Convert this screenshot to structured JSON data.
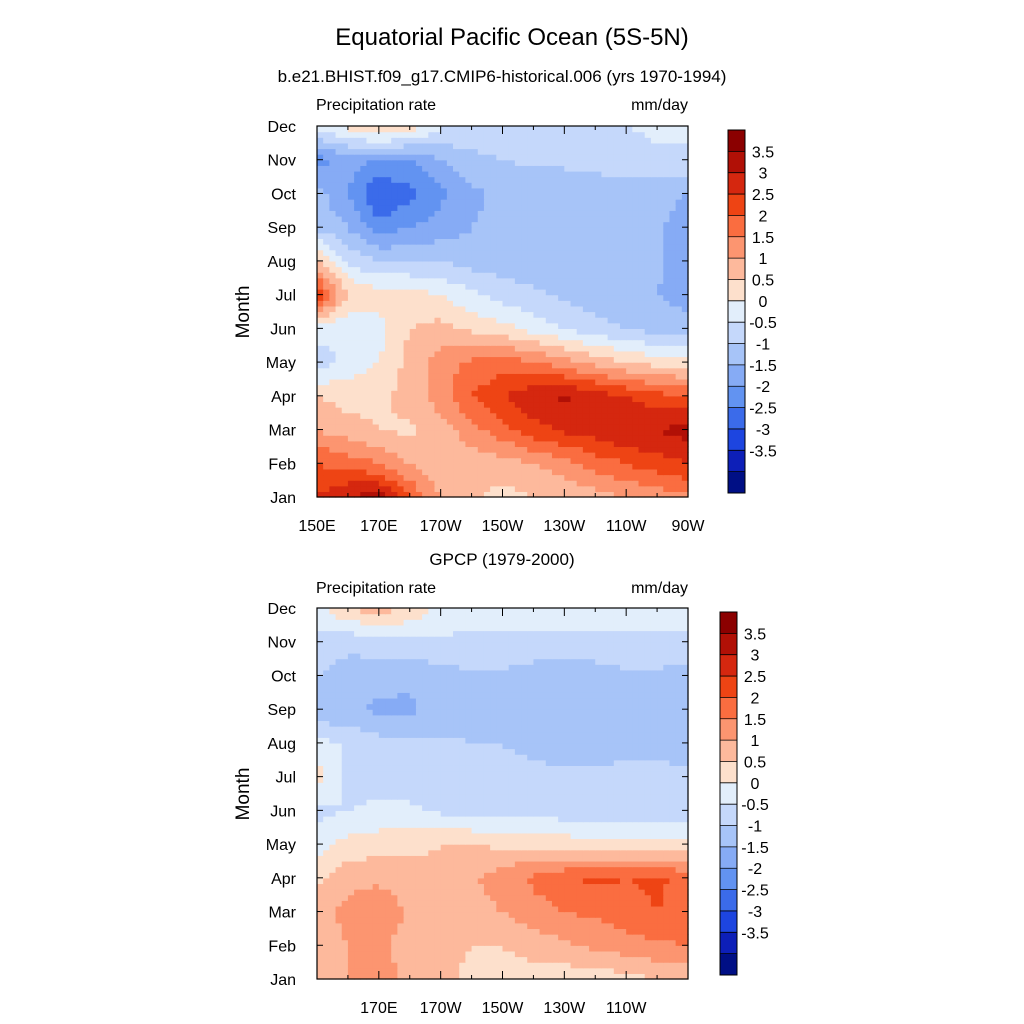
{
  "header": {
    "title": "Equatorial Pacific Ocean (5S-5N)",
    "subtitle": "b.e21.BHIST.f09_g17.CMIP6-historical.006 (yrs 1970-1994)"
  },
  "colorbar": {
    "labels": [
      "3.5",
      "3",
      "2.5",
      "2",
      "1.5",
      "1",
      "0.5",
      "0",
      "-0.5",
      "-1",
      "-1.5",
      "-2",
      "-2.5",
      "-3",
      "-3.5"
    ],
    "colors": [
      "#8b0000",
      "#b11006",
      "#d5270f",
      "#ee4414",
      "#fa6d40",
      "#fc9570",
      "#fdb99c",
      "#fde0cc",
      "#e2eefb",
      "#c5d8fb",
      "#a7c4f8",
      "#86abf5",
      "#6293f1",
      "#3b6bea",
      "#1d45e0",
      "#0d1fb8",
      "#000f85"
    ]
  },
  "chart_data": [
    {
      "type": "heatmap",
      "title": "b.e21.BHIST.f09_g17.CMIP6-historical.006 (yrs 1970-1994)",
      "left_label": "Precipitation rate",
      "right_label": "mm/day",
      "ylabel": "Month",
      "x_ticks": [
        "150E",
        "170E",
        "170W",
        "150W",
        "130W",
        "110W",
        "90W"
      ],
      "y_ticks": [
        "Jan",
        "Feb",
        "Mar",
        "Apr",
        "May",
        "Jun",
        "Jul",
        "Aug",
        "Sep",
        "Oct",
        "Nov",
        "Dec"
      ],
      "xlim": [
        150,
        270
      ],
      "ylim": [
        0,
        11
      ],
      "grid": false,
      "x": [
        150,
        160,
        170,
        180,
        190,
        200,
        210,
        220,
        230,
        240,
        250,
        260,
        270
      ],
      "y": [
        "Jan",
        "Feb",
        "Mar",
        "Apr",
        "May",
        "Jun",
        "Jul",
        "Aug",
        "Sep",
        "Oct",
        "Nov",
        "Dec"
      ],
      "z": [
        [
          2.5,
          3.0,
          3.3,
          2.0,
          1.0,
          0.6,
          0.3,
          0.5,
          0.6,
          0.8,
          1.0,
          1.2,
          1.4
        ],
        [
          2.0,
          1.8,
          1.5,
          1.0,
          0.6,
          0.7,
          0.8,
          1.0,
          1.3,
          1.7,
          2.0,
          2.3,
          2.5
        ],
        [
          1.0,
          0.7,
          0.5,
          0.4,
          0.7,
          1.3,
          1.8,
          2.3,
          2.6,
          2.8,
          3.0,
          3.0,
          3.2
        ],
        [
          0.5,
          0.3,
          0.4,
          0.7,
          1.3,
          2.0,
          2.5,
          2.9,
          3.1,
          2.8,
          2.5,
          2.2,
          2.0
        ],
        [
          -0.8,
          -0.3,
          0.0,
          0.7,
          1.2,
          1.6,
          1.7,
          1.6,
          1.2,
          0.8,
          0.5,
          0.3,
          0.2
        ],
        [
          -0.3,
          -0.5,
          -0.2,
          0.5,
          0.7,
          0.4,
          0.2,
          -0.2,
          -0.5,
          -0.8,
          -1.0,
          -1.2,
          -1.3
        ],
        [
          2.5,
          0.5,
          0.3,
          0.2,
          0.0,
          -0.4,
          -0.7,
          -0.9,
          -1.1,
          -1.3,
          -1.4,
          -1.5,
          -1.7
        ],
        [
          0.6,
          -0.6,
          -1.0,
          -1.0,
          -1.0,
          -1.2,
          -1.3,
          -1.3,
          -1.3,
          -1.3,
          -1.3,
          -1.4,
          -1.8
        ],
        [
          -1.1,
          -1.5,
          -2.3,
          -2.0,
          -1.8,
          -1.5,
          -1.4,
          -1.3,
          -1.3,
          -1.3,
          -1.3,
          -1.4,
          -1.8
        ],
        [
          -1.3,
          -2.0,
          -3.0,
          -2.7,
          -2.1,
          -1.6,
          -1.4,
          -1.3,
          -1.3,
          -1.3,
          -1.3,
          -1.3,
          -1.5
        ],
        [
          -2.2,
          -1.8,
          -2.0,
          -2.0,
          -1.5,
          -1.2,
          -1.0,
          -0.9,
          -0.9,
          -0.8,
          -0.7,
          -0.6,
          -0.6
        ],
        [
          -0.3,
          0.2,
          0.7,
          0.3,
          -0.4,
          -0.6,
          -0.5,
          -0.5,
          -0.6,
          -0.7,
          -0.5,
          -0.4,
          -0.4
        ]
      ]
    },
    {
      "type": "heatmap",
      "title": "GPCP (1979-2000)",
      "left_label": "Precipitation rate",
      "right_label": "mm/day",
      "ylabel": "Month",
      "x_ticks": [
        "170E",
        "170W",
        "150W",
        "130W",
        "110W"
      ],
      "y_ticks": [
        "Jan",
        "Feb",
        "Mar",
        "Apr",
        "May",
        "Jun",
        "Jul",
        "Aug",
        "Sep",
        "Oct",
        "Nov",
        "Dec"
      ],
      "xlim": [
        150,
        270
      ],
      "ylim": [
        0,
        11
      ],
      "grid": false,
      "x": [
        150,
        160,
        170,
        180,
        190,
        200,
        210,
        220,
        230,
        240,
        250,
        260,
        270
      ],
      "y": [
        "Jan",
        "Feb",
        "Mar",
        "Apr",
        "May",
        "Jun",
        "Jul",
        "Aug",
        "Sep",
        "Oct",
        "Nov",
        "Dec"
      ],
      "z": [
        [
          0.6,
          1.0,
          1.3,
          0.8,
          0.6,
          0.4,
          0.3,
          0.3,
          0.2,
          0.2,
          0.3,
          0.5,
          0.6
        ],
        [
          0.6,
          1.0,
          1.1,
          0.8,
          0.6,
          0.5,
          0.5,
          0.7,
          0.9,
          1.1,
          1.3,
          1.4,
          1.5
        ],
        [
          0.7,
          1.2,
          1.4,
          0.9,
          0.7,
          0.8,
          1.0,
          1.3,
          1.5,
          1.6,
          1.8,
          2.0,
          1.8
        ],
        [
          0.4,
          0.8,
          0.9,
          0.7,
          0.6,
          0.9,
          1.3,
          1.6,
          1.9,
          2.1,
          2.0,
          2.1,
          1.8
        ],
        [
          -0.3,
          0.2,
          0.3,
          0.4,
          0.5,
          0.5,
          0.4,
          0.4,
          0.3,
          0.2,
          0.2,
          0.2,
          0.2
        ],
        [
          -0.6,
          -0.5,
          -0.4,
          -0.4,
          -0.6,
          -0.7,
          -0.7,
          -0.7,
          -0.8,
          -0.9,
          -0.9,
          -0.8,
          -0.8
        ],
        [
          0.2,
          -0.6,
          -0.7,
          -0.8,
          -0.9,
          -0.9,
          -0.9,
          -0.9,
          -0.9,
          -0.9,
          -0.9,
          -0.9,
          -0.9
        ],
        [
          -0.3,
          -0.6,
          -0.8,
          -0.9,
          -0.9,
          -1.0,
          -1.0,
          -1.1,
          -1.2,
          -1.2,
          -1.1,
          -1.1,
          -1.2
        ],
        [
          -1.4,
          -1.4,
          -1.6,
          -1.6,
          -1.3,
          -1.2,
          -1.2,
          -1.4,
          -1.4,
          -1.4,
          -1.2,
          -1.2,
          -1.3
        ],
        [
          -1.0,
          -1.2,
          -1.3,
          -1.4,
          -1.2,
          -1.1,
          -1.1,
          -1.3,
          -1.3,
          -1.3,
          -1.1,
          -1.1,
          -1.3
        ],
        [
          -0.6,
          -0.9,
          -0.7,
          -0.7,
          -0.6,
          -0.6,
          -0.6,
          -0.6,
          -0.6,
          -0.6,
          -0.6,
          -0.6,
          -0.6
        ],
        [
          -0.2,
          0.5,
          0.8,
          0.4,
          -0.1,
          -0.3,
          -0.3,
          -0.3,
          -0.3,
          -0.3,
          -0.3,
          -0.3,
          -0.3
        ]
      ]
    }
  ]
}
